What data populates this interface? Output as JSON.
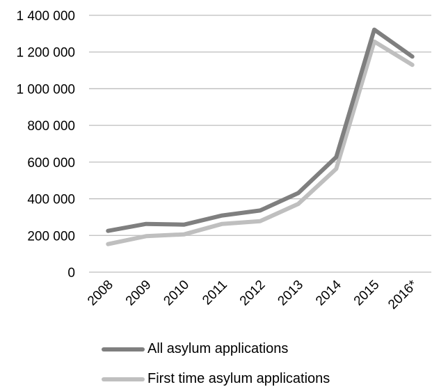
{
  "chart_data": {
    "type": "line",
    "categories": [
      "2008",
      "2009",
      "2010",
      "2011",
      "2012",
      "2013",
      "2014",
      "2015",
      "2016*"
    ],
    "ylim": [
      0,
      1400000
    ],
    "yticks": [
      0,
      200000,
      400000,
      600000,
      800000,
      1000000,
      1200000,
      1400000
    ],
    "ytick_labels": [
      "0",
      "200 000",
      "400 000",
      "600 000",
      "800 000",
      "1 000 000",
      "1 200 000",
      "1 400 000"
    ],
    "grid": true,
    "legend_position": "bottom",
    "series": [
      {
        "name": "All asylum applications",
        "color": "#7f7f7f",
        "values": [
          225000,
          263000,
          259000,
          309000,
          336000,
          431000,
          627000,
          1322000,
          1175000
        ]
      },
      {
        "name": "First time asylum applications",
        "color": "#bfbfbf",
        "values": [
          153000,
          196000,
          206000,
          263000,
          278000,
          372000,
          563000,
          1257000,
          1130000
        ]
      }
    ]
  }
}
